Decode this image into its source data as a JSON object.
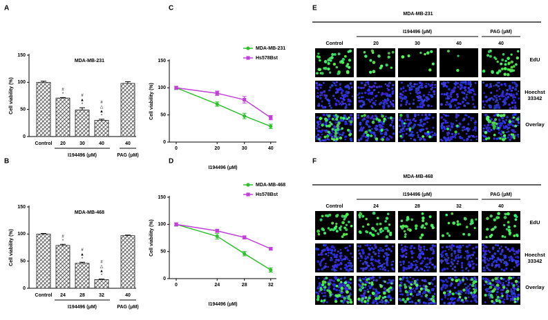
{
  "panel_labels": [
    "A",
    "B",
    "C",
    "D",
    "E",
    "F"
  ],
  "chart_data": [
    {
      "type": "bar",
      "title": "MDA-MB-231",
      "y_label": "Cell viability (%)",
      "categories": [
        "Control",
        "20",
        "30",
        "40",
        "40"
      ],
      "group_labels": [
        "I194496 (μM)",
        "PAG (μM)"
      ],
      "values": [
        100,
        71,
        49,
        30,
        98
      ],
      "errors": [
        2,
        1,
        4,
        2,
        3
      ],
      "significance_marks": [
        null,
        [
          "#",
          "*"
        ],
        [
          "#",
          "▲",
          "*"
        ],
        [
          "#",
          "△",
          "▲",
          "*"
        ],
        null
      ],
      "color": "#333333",
      "ylim": [
        0,
        150
      ],
      "yticks": [
        0,
        50,
        100,
        150
      ]
    },
    {
      "type": "bar",
      "title": "MDA-MB-468",
      "y_label": "Cell viability (%)",
      "categories": [
        "Control",
        "24",
        "28",
        "32",
        "40"
      ],
      "group_labels": [
        "I194496 (μM)",
        "PAG (μM)"
      ],
      "values": [
        100,
        79,
        46,
        16,
        97
      ],
      "errors": [
        1,
        2,
        2,
        1,
        1
      ],
      "significance_marks": [
        null,
        [
          "#",
          "*"
        ],
        [
          "#",
          "▲",
          "*"
        ],
        [
          "#",
          "△",
          "▲",
          "*"
        ],
        null
      ],
      "color": "#333333",
      "ylim": [
        0,
        150
      ],
      "yticks": [
        0,
        50,
        100,
        150
      ]
    },
    {
      "type": "line",
      "y_label": "Cell viability (%)",
      "x_label": "I194496 (μM)",
      "categories": [
        0,
        20,
        30,
        40
      ],
      "series": [
        {
          "name": "MDA-MB-231",
          "color": "#2ec02e",
          "values": [
            100,
            70,
            48,
            29
          ],
          "errors": [
            3,
            4,
            5,
            4
          ]
        },
        {
          "name": "Hs578Bst",
          "color": "#c040d8",
          "values": [
            100,
            90,
            78,
            45
          ],
          "errors": [
            3,
            4,
            6,
            4
          ]
        }
      ],
      "ylim": [
        0,
        150
      ],
      "yticks": [
        0,
        50,
        100,
        150
      ],
      "legend": "upper right"
    },
    {
      "type": "line",
      "y_label": "Cell viability (%)",
      "x_label": "I194496 (μM)",
      "categories": [
        0,
        24,
        28,
        32
      ],
      "series": [
        {
          "name": "MDA-MB-468",
          "color": "#2ec02e",
          "values": [
            100,
            78,
            46,
            16
          ],
          "errors": [
            3,
            5,
            4,
            4
          ]
        },
        {
          "name": "Hs578Bst",
          "color": "#c040d8",
          "values": [
            100,
            88,
            76,
            55
          ],
          "errors": [
            3,
            3,
            3,
            2
          ]
        }
      ],
      "ylim": [
        0,
        150
      ],
      "yticks": [
        0,
        50,
        100,
        150
      ],
      "legend": "upper right"
    }
  ],
  "image_panels": [
    {
      "title": "MDA-MB-231",
      "control_label": "Control",
      "groups": [
        {
          "label": "I194496 (μM)",
          "columns": [
            "20",
            "30",
            "40"
          ]
        },
        {
          "label": "PAG (μM)",
          "columns": [
            "40"
          ]
        }
      ],
      "rows": [
        "EdU",
        "Hoechst 33342",
        "Overlay"
      ]
    },
    {
      "title": "MDA-MB-468",
      "control_label": "Control",
      "groups": [
        {
          "label": "I194496 (μM)",
          "columns": [
            "24",
            "28",
            "32"
          ]
        },
        {
          "label": "PAG (μM)",
          "columns": [
            "40"
          ]
        }
      ],
      "rows": [
        "EdU",
        "Hoechst 33342",
        "Overlay"
      ]
    }
  ]
}
